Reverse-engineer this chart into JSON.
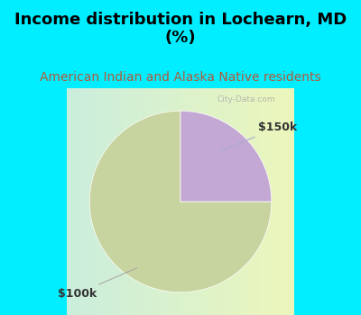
{
  "title": "Income distribution in Lochearn, MD\n(%)",
  "subtitle": "American Indian and Alaska Native residents",
  "slices": [
    75,
    25
  ],
  "labels": [
    "$100k",
    "$150k"
  ],
  "colors": [
    "#c8d4a0",
    "#c4a8d4"
  ],
  "background_color": "#00eeff",
  "title_fontsize": 13,
  "subtitle_fontsize": 10,
  "label_fontsize": 9,
  "startangle": 90
}
